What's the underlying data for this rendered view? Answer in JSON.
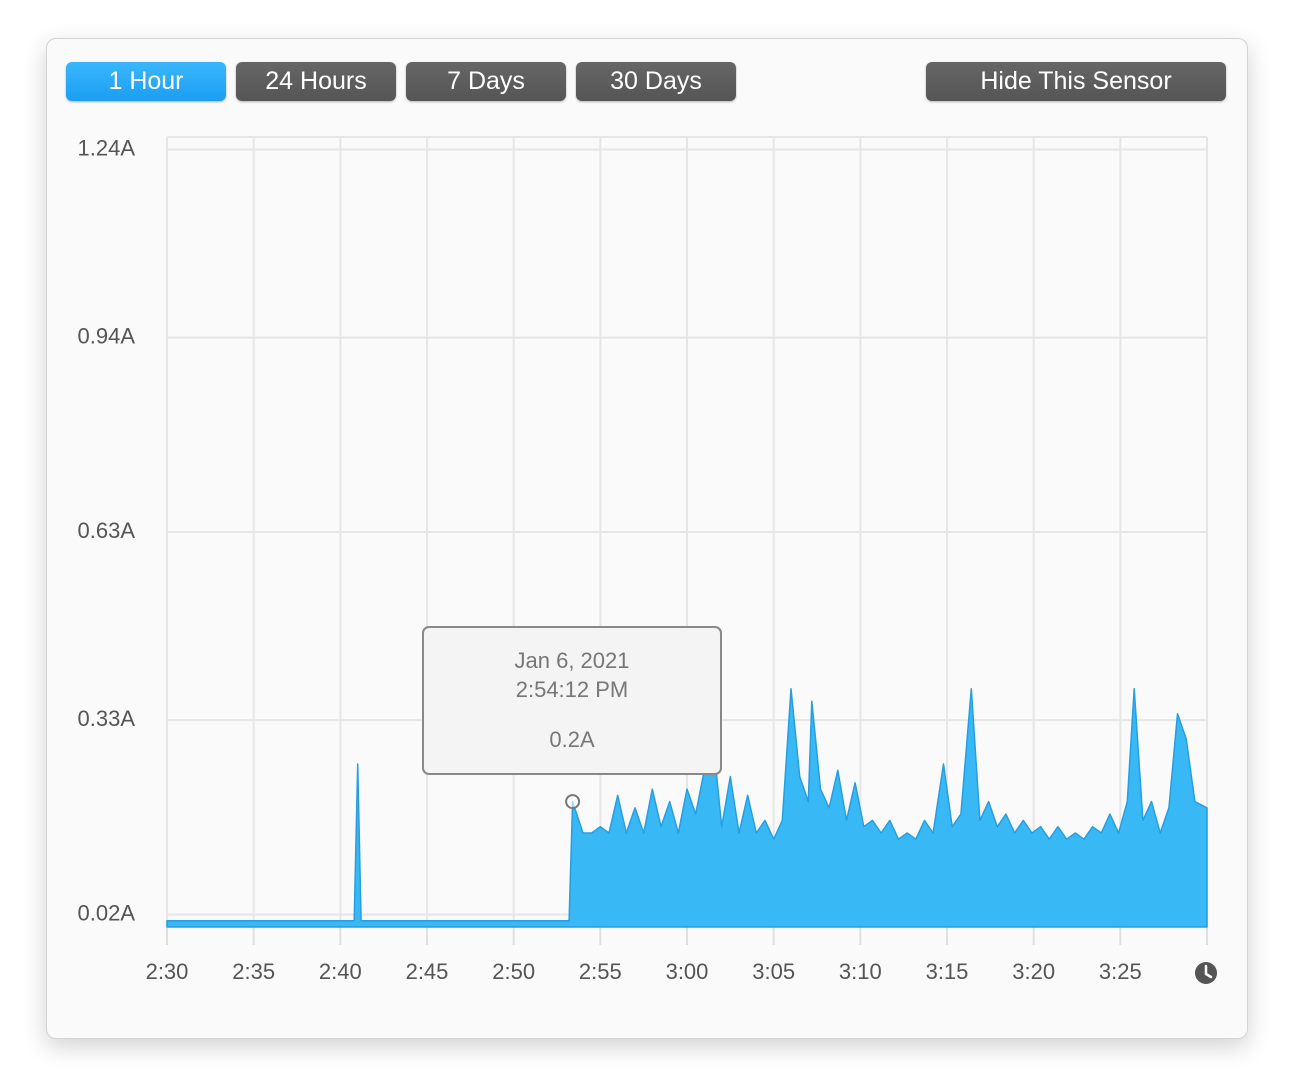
{
  "buttons": [
    {
      "label": "1 Hour",
      "active": true
    },
    {
      "label": "24 Hours",
      "active": false
    },
    {
      "label": "7 Days",
      "active": false
    },
    {
      "label": "30 Days",
      "active": false
    }
  ],
  "hide_button": "Hide This Sensor",
  "chart_data": {
    "type": "area",
    "color": "#38b9f6",
    "line_color": "#279ee0",
    "grid": true,
    "x": [
      0,
      10.8,
      11.0,
      11.2,
      23.2,
      23.4,
      24,
      24.5,
      25,
      25.5,
      26,
      26.5,
      27,
      27.5,
      28,
      28.5,
      29,
      29.5,
      30,
      30.5,
      31,
      31.5,
      32,
      32.5,
      33,
      33.5,
      34,
      34.5,
      35,
      35.5,
      36,
      36.5,
      37,
      37.2,
      37.7,
      38.2,
      38.7,
      39.2,
      39.7,
      40.2,
      40.7,
      41.2,
      41.7,
      42.2,
      42.7,
      43.2,
      43.7,
      44.2,
      44.8,
      45.3,
      45.8,
      46.4,
      46.9,
      47.4,
      47.9,
      48.4,
      48.9,
      49.4,
      49.9,
      50.4,
      50.9,
      51.4,
      51.9,
      52.4,
      52.9,
      53.4,
      53.9,
      54.4,
      54.9,
      55.4,
      55.8,
      56.3,
      56.8,
      57.3,
      57.8,
      58.3,
      58.8,
      59.3,
      60
    ],
    "values": [
      0.01,
      0.01,
      0.26,
      0.01,
      0.01,
      0.2,
      0.15,
      0.15,
      0.16,
      0.15,
      0.21,
      0.15,
      0.19,
      0.15,
      0.22,
      0.16,
      0.2,
      0.15,
      0.22,
      0.18,
      0.25,
      0.3,
      0.16,
      0.24,
      0.15,
      0.21,
      0.15,
      0.17,
      0.14,
      0.17,
      0.38,
      0.24,
      0.2,
      0.36,
      0.22,
      0.19,
      0.25,
      0.17,
      0.23,
      0.16,
      0.17,
      0.15,
      0.17,
      0.14,
      0.15,
      0.14,
      0.17,
      0.15,
      0.26,
      0.16,
      0.18,
      0.38,
      0.17,
      0.2,
      0.16,
      0.18,
      0.15,
      0.17,
      0.15,
      0.16,
      0.14,
      0.16,
      0.14,
      0.15,
      0.14,
      0.16,
      0.15,
      0.18,
      0.15,
      0.2,
      0.38,
      0.17,
      0.2,
      0.15,
      0.19,
      0.34,
      0.3,
      0.2,
      0.19
    ],
    "xlim": [
      0,
      60
    ],
    "xticks": [
      {
        "value": 0,
        "label": "2:30"
      },
      {
        "value": 5,
        "label": "2:35"
      },
      {
        "value": 10,
        "label": "2:40"
      },
      {
        "value": 15,
        "label": "2:45"
      },
      {
        "value": 20,
        "label": "2:50"
      },
      {
        "value": 25,
        "label": "2:55"
      },
      {
        "value": 30,
        "label": "3:00"
      },
      {
        "value": 35,
        "label": "3:05"
      },
      {
        "value": 40,
        "label": "3:10"
      },
      {
        "value": 45,
        "label": "3:15"
      },
      {
        "value": 50,
        "label": "3:20"
      },
      {
        "value": 55,
        "label": "3:25"
      },
      60
    ],
    "ylim": [
      0,
      1.26
    ],
    "yticks": [
      {
        "value": 0.02,
        "label": "0.02A"
      },
      {
        "value": 0.33,
        "label": "0.33A"
      },
      {
        "value": 0.63,
        "label": "0.63A"
      },
      {
        "value": 0.94,
        "label": "0.94A"
      },
      {
        "value": 1.24,
        "label": "1.24A"
      }
    ],
    "tooltip": {
      "date": "Jan 6, 2021",
      "time": "2:54:12 PM",
      "label": "0.2A",
      "index": 5
    }
  }
}
